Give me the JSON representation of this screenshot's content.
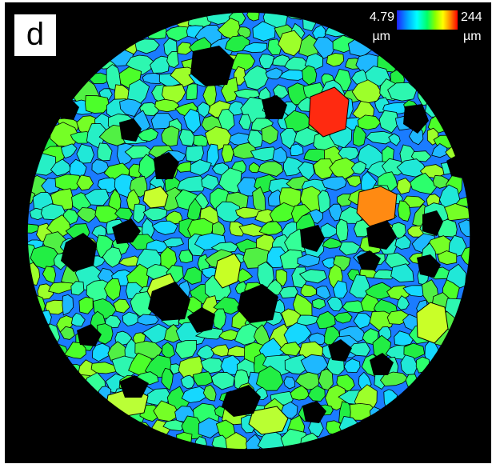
{
  "panel": {
    "label": "d"
  },
  "scale_bar": {
    "min_value": "4.79",
    "max_value": "244",
    "unit": "µm",
    "colors": [
      "#1f1fff",
      "#00a8ff",
      "#00ffff",
      "#00ff66",
      "#88ff00",
      "#ffff00",
      "#ff8800",
      "#ff0000"
    ]
  },
  "image": {
    "description_icon": "segmented-grain-map"
  },
  "colors": {
    "background": "#000000",
    "grain_green": "#32e632",
    "grain_cyan": "#24e6d8",
    "grain_blue": "#1a7cff",
    "grain_yellow": "#c4ff2c",
    "grain_orange": "#ff8a12",
    "grain_red": "#ff2a10"
  }
}
